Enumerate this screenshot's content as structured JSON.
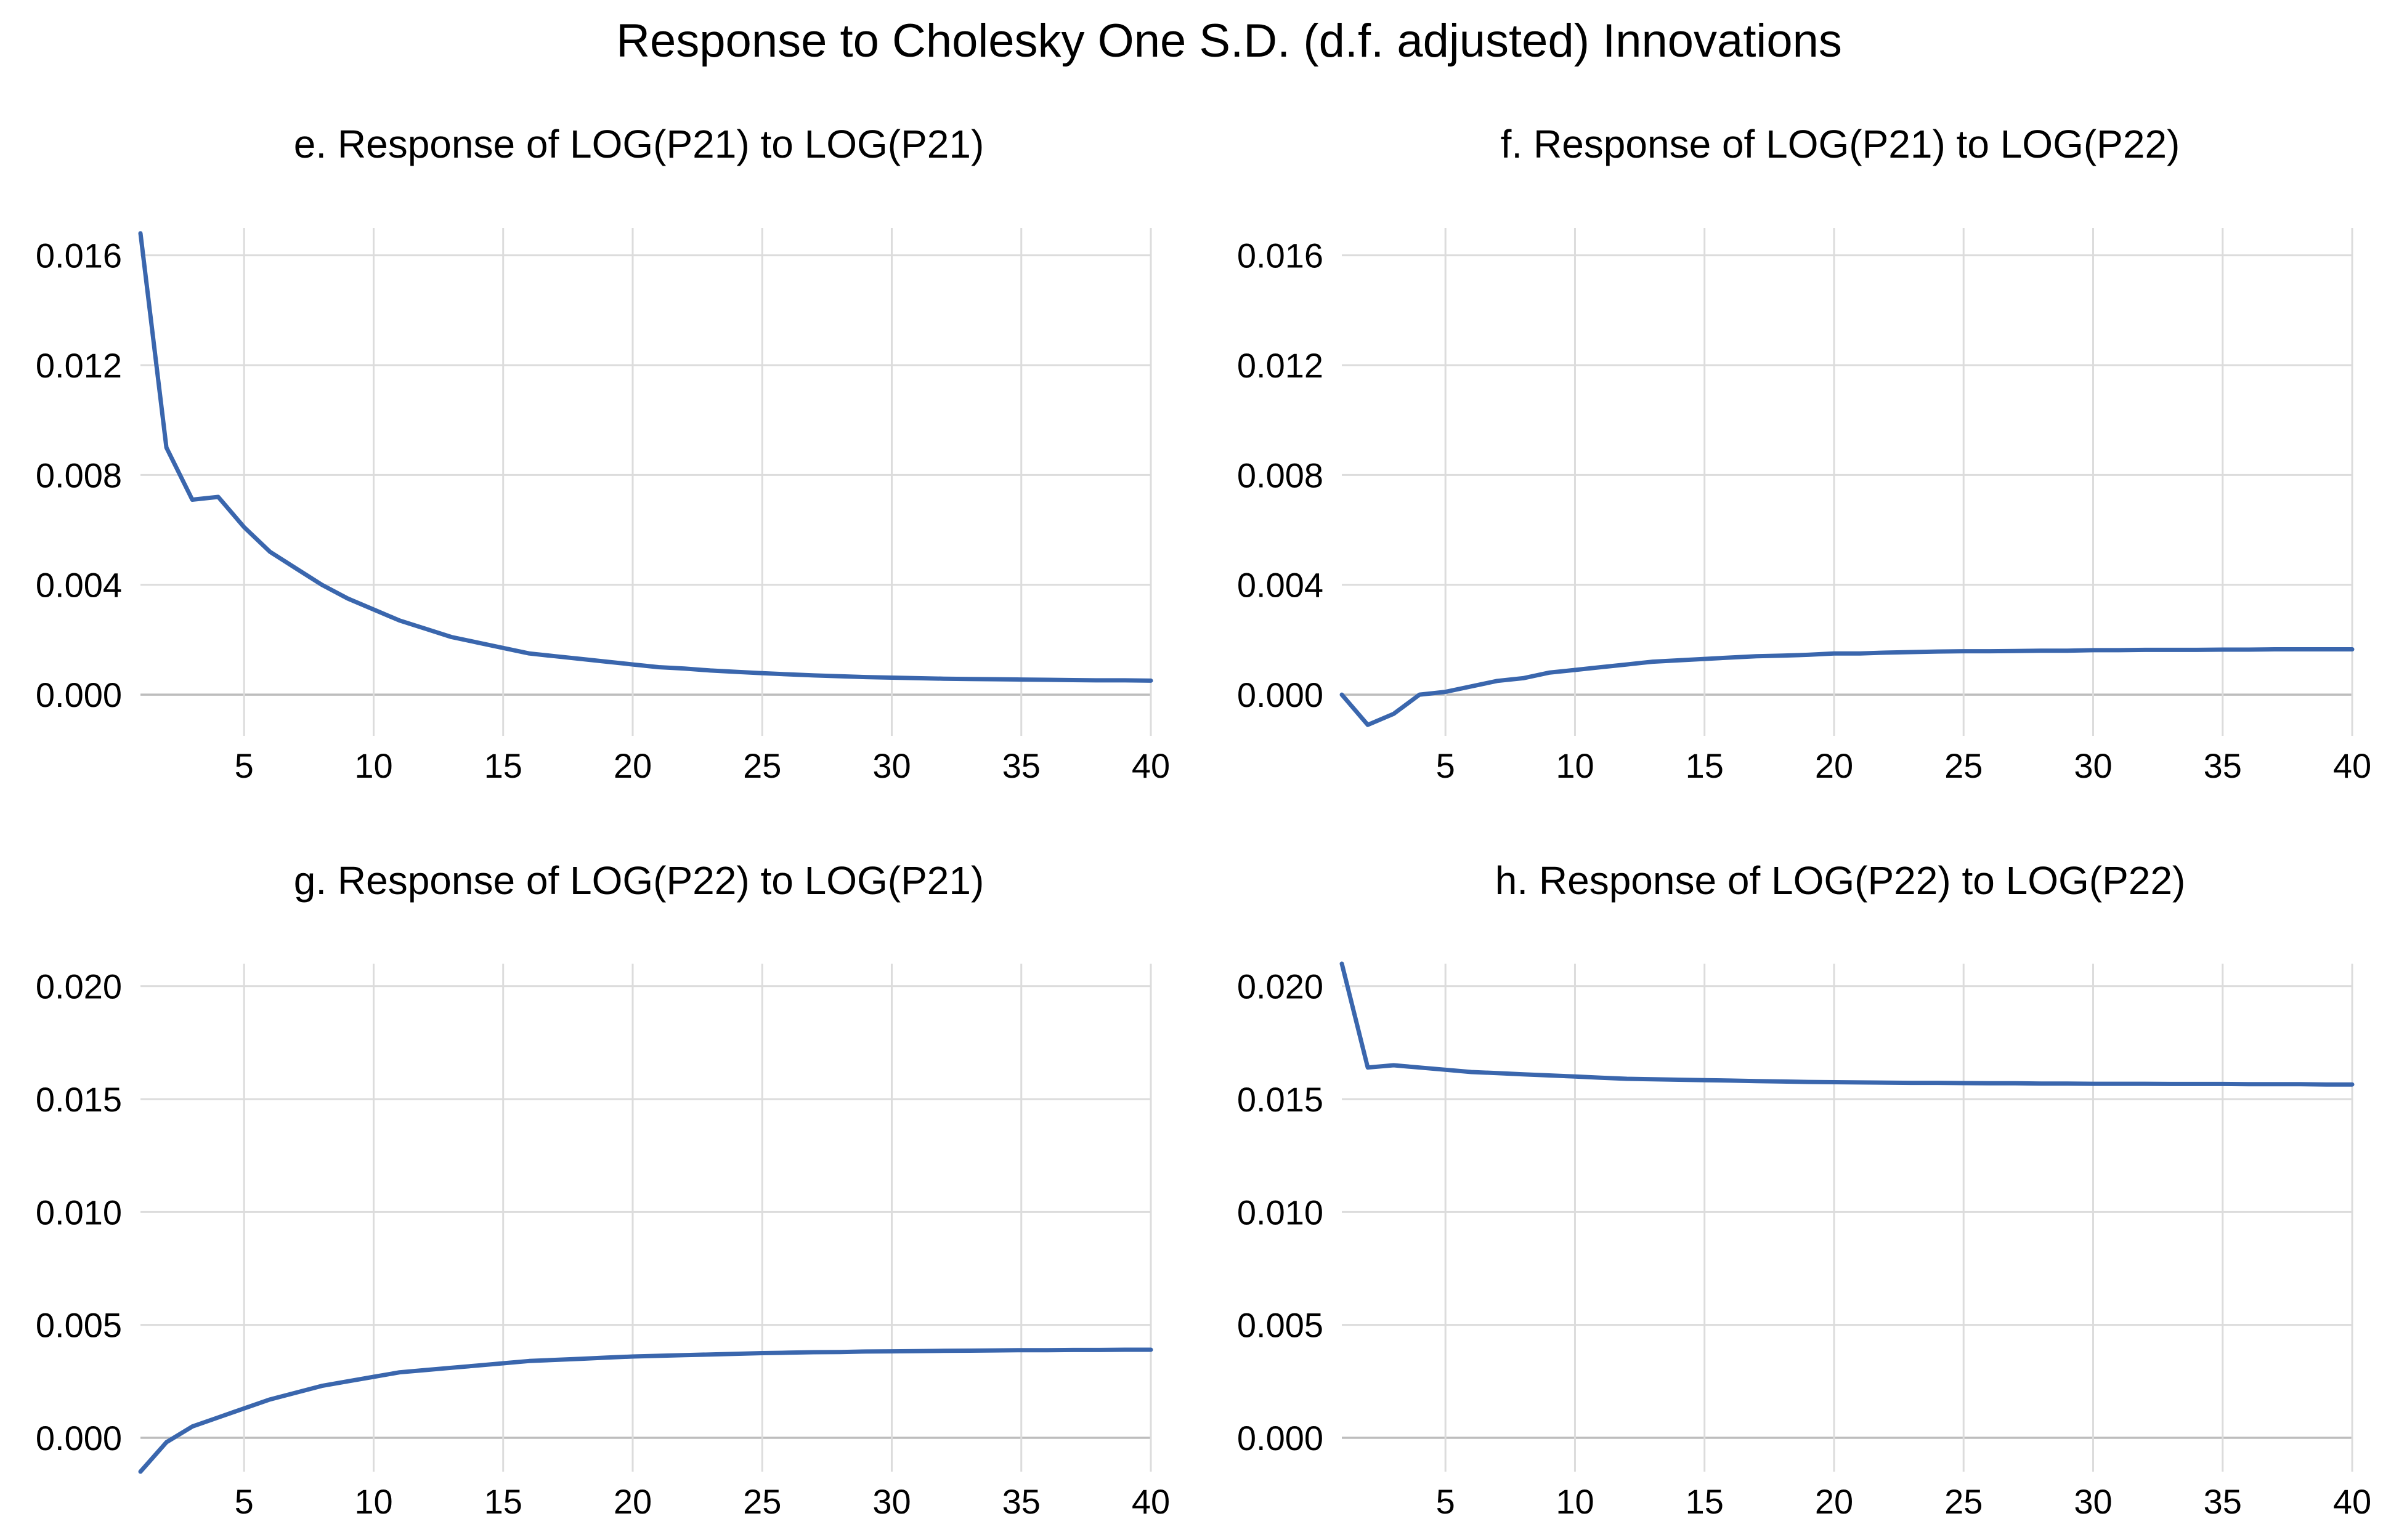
{
  "figure_title": "Response to Cholesky One S.D. (d.f. adjusted) Innovations",
  "colors": {
    "series": "#3a66ad",
    "grid": "#dcdcdc",
    "zero": "#bdbdbd"
  },
  "chart_data": [
    {
      "type": "line",
      "title": "e. Response of LOG(P21) to LOG(P21)",
      "xlabel": "",
      "ylabel": "",
      "x": [
        1,
        2,
        3,
        4,
        5,
        6,
        7,
        8,
        9,
        10,
        11,
        12,
        13,
        14,
        15,
        16,
        17,
        18,
        19,
        20,
        21,
        22,
        23,
        24,
        25,
        26,
        27,
        28,
        29,
        30,
        31,
        32,
        33,
        34,
        35,
        36,
        37,
        38,
        39,
        40
      ],
      "values": [
        0.0168,
        0.009,
        0.0071,
        0.0072,
        0.0061,
        0.0052,
        0.0046,
        0.004,
        0.0035,
        0.0031,
        0.0027,
        0.0024,
        0.0021,
        0.0019,
        0.0017,
        0.0015,
        0.0014,
        0.0013,
        0.0012,
        0.0011,
        0.001,
        0.00095,
        0.00088,
        0.00083,
        0.00078,
        0.00074,
        0.0007,
        0.00067,
        0.00064,
        0.00062,
        0.0006,
        0.00058,
        0.00057,
        0.00056,
        0.00055,
        0.00054,
        0.00053,
        0.00052,
        0.00052,
        0.00051
      ],
      "xlim": [
        1,
        40
      ],
      "ylim": [
        -0.0015,
        0.017
      ],
      "xticks": [
        5,
        10,
        15,
        20,
        25,
        30,
        35,
        40
      ],
      "xtick_labels": [
        "5",
        "10",
        "15",
        "20",
        "25",
        "30",
        "35",
        "40"
      ],
      "yticks": [
        0.0,
        0.004,
        0.008,
        0.012,
        0.016
      ],
      "ytick_labels": [
        "0.000",
        "0.004",
        "0.008",
        "0.012",
        "0.016"
      ]
    },
    {
      "type": "line",
      "title": "f. Response of LOG(P21) to LOG(P22)",
      "xlabel": "",
      "ylabel": "",
      "x": [
        1,
        2,
        3,
        4,
        5,
        6,
        7,
        8,
        9,
        10,
        11,
        12,
        13,
        14,
        15,
        16,
        17,
        18,
        19,
        20,
        21,
        22,
        23,
        24,
        25,
        26,
        27,
        28,
        29,
        30,
        31,
        32,
        33,
        34,
        35,
        36,
        37,
        38,
        39,
        40
      ],
      "values": [
        0.0,
        -0.0011,
        -0.0007,
        0.0,
        0.0001,
        0.0003,
        0.0005,
        0.0006,
        0.0008,
        0.0009,
        0.001,
        0.0011,
        0.0012,
        0.00125,
        0.0013,
        0.00135,
        0.0014,
        0.00142,
        0.00145,
        0.0015,
        0.0015,
        0.00153,
        0.00155,
        0.00157,
        0.00158,
        0.00158,
        0.00159,
        0.0016,
        0.0016,
        0.00162,
        0.00162,
        0.00163,
        0.00163,
        0.00163,
        0.00164,
        0.00164,
        0.00165,
        0.00165,
        0.00165,
        0.00165
      ],
      "xlim": [
        1,
        40
      ],
      "ylim": [
        -0.0015,
        0.017
      ],
      "xticks": [
        5,
        10,
        15,
        20,
        25,
        30,
        35,
        40
      ],
      "xtick_labels": [
        "5",
        "10",
        "15",
        "20",
        "25",
        "30",
        "35",
        "40"
      ],
      "yticks": [
        0.0,
        0.004,
        0.008,
        0.012,
        0.016
      ],
      "ytick_labels": [
        "0.000",
        "0.004",
        "0.008",
        "0.012",
        "0.016"
      ]
    },
    {
      "type": "line",
      "title": "g. Response of LOG(P22) to LOG(P21)",
      "xlabel": "",
      "ylabel": "",
      "x": [
        1,
        2,
        3,
        4,
        5,
        6,
        7,
        8,
        9,
        10,
        11,
        12,
        13,
        14,
        15,
        16,
        17,
        18,
        19,
        20,
        21,
        22,
        23,
        24,
        25,
        26,
        27,
        28,
        29,
        30,
        31,
        32,
        33,
        34,
        35,
        36,
        37,
        38,
        39,
        40
      ],
      "values": [
        -0.0015,
        -0.0002,
        0.0005,
        0.0009,
        0.0013,
        0.0017,
        0.002,
        0.0023,
        0.0025,
        0.0027,
        0.0029,
        0.003,
        0.0031,
        0.0032,
        0.0033,
        0.0034,
        0.00345,
        0.0035,
        0.00355,
        0.0036,
        0.00363,
        0.00366,
        0.00369,
        0.00372,
        0.00375,
        0.00377,
        0.00379,
        0.0038,
        0.00382,
        0.00383,
        0.00384,
        0.00385,
        0.00386,
        0.00387,
        0.00388,
        0.00388,
        0.00389,
        0.00389,
        0.0039,
        0.0039
      ],
      "xlim": [
        1,
        40
      ],
      "ylim": [
        -0.0015,
        0.021
      ],
      "xticks": [
        5,
        10,
        15,
        20,
        25,
        30,
        35,
        40
      ],
      "xtick_labels": [
        "5",
        "10",
        "15",
        "20",
        "25",
        "30",
        "35",
        "40"
      ],
      "yticks": [
        0.0,
        0.005,
        0.01,
        0.015,
        0.02
      ],
      "ytick_labels": [
        "0.000",
        "0.005",
        "0.010",
        "0.015",
        "0.020"
      ]
    },
    {
      "type": "line",
      "title": "h. Response of LOG(P22) to LOG(P22)",
      "xlabel": "",
      "ylabel": "",
      "x": [
        1,
        2,
        3,
        4,
        5,
        6,
        7,
        8,
        9,
        10,
        11,
        12,
        13,
        14,
        15,
        16,
        17,
        18,
        19,
        20,
        21,
        22,
        23,
        24,
        25,
        26,
        27,
        28,
        29,
        30,
        31,
        32,
        33,
        34,
        35,
        36,
        37,
        38,
        39,
        40
      ],
      "values": [
        0.021,
        0.0164,
        0.0165,
        0.0164,
        0.0163,
        0.0162,
        0.01615,
        0.0161,
        0.01605,
        0.016,
        0.01595,
        0.0159,
        0.01588,
        0.01586,
        0.01584,
        0.01582,
        0.0158,
        0.01578,
        0.01576,
        0.01575,
        0.01574,
        0.01573,
        0.01572,
        0.01572,
        0.01571,
        0.0157,
        0.0157,
        0.01569,
        0.01569,
        0.01568,
        0.01568,
        0.01568,
        0.01567,
        0.01567,
        0.01567,
        0.01566,
        0.01566,
        0.01566,
        0.01565,
        0.01565
      ],
      "xlim": [
        1,
        40
      ],
      "ylim": [
        -0.0015,
        0.021
      ],
      "xticks": [
        5,
        10,
        15,
        20,
        25,
        30,
        35,
        40
      ],
      "xtick_labels": [
        "5",
        "10",
        "15",
        "20",
        "25",
        "30",
        "35",
        "40"
      ],
      "yticks": [
        0.0,
        0.005,
        0.01,
        0.015,
        0.02
      ],
      "ytick_labels": [
        "0.000",
        "0.005",
        "0.010",
        "0.015",
        "0.020"
      ]
    }
  ]
}
